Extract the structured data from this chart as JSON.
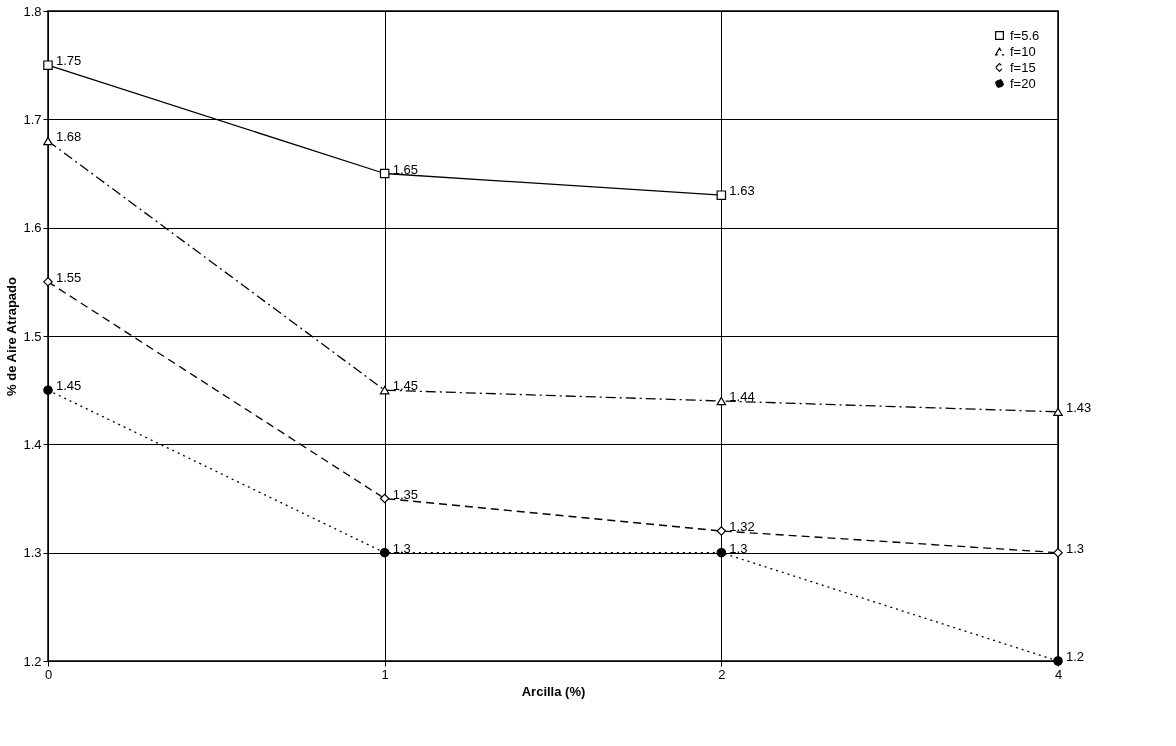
{
  "chart_data": {
    "type": "line",
    "xlabel": "Arcilla (%)",
    "ylabel": "% de Aire Atrapado",
    "categories": [
      "0",
      "1",
      "2",
      "4"
    ],
    "series": [
      {
        "name": "f=5.6",
        "color": "#000000",
        "values": [
          1.75,
          1.65,
          1.63,
          null
        ],
        "marker": "square",
        "line_style": "solid"
      },
      {
        "name": "f=10",
        "color": "#000000",
        "values": [
          1.68,
          1.45,
          1.44,
          1.43
        ],
        "marker": "triangle",
        "line_style": "dashdot"
      },
      {
        "name": "f=15",
        "color": "#000000",
        "values": [
          1.55,
          1.35,
          1.32,
          1.3
        ],
        "marker": "diamond",
        "line_style": "dashed"
      },
      {
        "name": "f=20",
        "color": "#000000",
        "values": [
          1.45,
          1.3,
          1.3,
          1.2
        ],
        "marker": "circle",
        "line_style": "dotted"
      }
    ],
    "ylim": [
      1.2,
      1.8
    ],
    "yticks": [
      1.2,
      1.3,
      1.4,
      1.5,
      1.6,
      1.7,
      1.8
    ],
    "grid": true,
    "legend": "top right",
    "data_labels": true
  }
}
